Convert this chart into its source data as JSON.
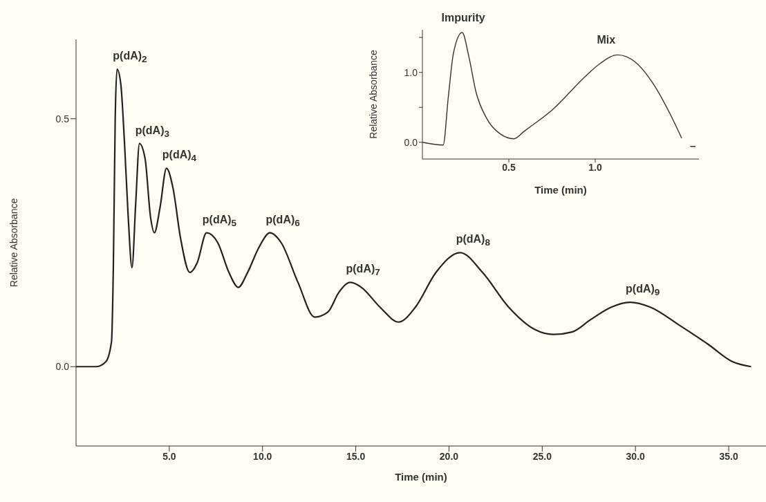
{
  "chart_data": [
    {
      "type": "line",
      "xlabel": "Time (min)",
      "ylabel": "Relative Absorbance",
      "xlim": [
        0,
        37
      ],
      "ylim": [
        -0.16,
        0.66
      ],
      "xticks": [
        {
          "value": 5,
          "label": "5.0"
        },
        {
          "value": 10,
          "label": "10.0"
        },
        {
          "value": 15,
          "label": "15.0"
        },
        {
          "value": 20,
          "label": "20.0"
        },
        {
          "value": 25,
          "label": "25.0"
        },
        {
          "value": 30,
          "label": "30.0"
        },
        {
          "value": 35,
          "label": "35.0"
        }
      ],
      "yticks": [
        {
          "value": 0,
          "label": "0.0"
        },
        0.5
      ],
      "series": [
        {
          "color": "#222222",
          "x": [
            0,
            1.1,
            1.6,
            1.9,
            2.0,
            2.1,
            2.2,
            2.4,
            2.6,
            2.8,
            3.0,
            3.2,
            3.4,
            3.7,
            4.0,
            4.2,
            4.5,
            4.85,
            5.2,
            5.6,
            6.1,
            6.5,
            7.0,
            7.6,
            8.2,
            8.7,
            9.2,
            9.8,
            10.4,
            11.0,
            11.9,
            12.8,
            13.5,
            14.1,
            14.7,
            15.3,
            16.3,
            17.3,
            18.2,
            19.3,
            20.6,
            21.8,
            23.2,
            24.6,
            25.6,
            26.6,
            27.6,
            28.7,
            29.7,
            30.8,
            32.3,
            33.9,
            35.2,
            36.2
          ],
          "values": [
            0,
            0,
            0.01,
            0.05,
            0.2,
            0.5,
            0.6,
            0.57,
            0.45,
            0.3,
            0.2,
            0.33,
            0.45,
            0.42,
            0.3,
            0.27,
            0.32,
            0.4,
            0.36,
            0.26,
            0.19,
            0.21,
            0.27,
            0.25,
            0.19,
            0.16,
            0.19,
            0.24,
            0.27,
            0.25,
            0.17,
            0.1,
            0.11,
            0.15,
            0.17,
            0.16,
            0.12,
            0.09,
            0.12,
            0.19,
            0.23,
            0.19,
            0.12,
            0.075,
            0.065,
            0.07,
            0.095,
            0.12,
            0.13,
            0.12,
            0.085,
            0.045,
            0.01,
            0.0
          ]
        }
      ],
      "annotations": [
        {
          "text": "p(dA)$_{2}$",
          "x": 2.2,
          "y": 0.6
        },
        {
          "text": "p(dA)$_{3}$",
          "x": 3.4,
          "y": 0.45
        },
        {
          "text": "p(dA)$_{4}$",
          "x": 4.85,
          "y": 0.4
        },
        {
          "text": "p(dA)$_{5}$",
          "x": 7.0,
          "y": 0.27
        },
        {
          "text": "p(dA)$_{6}$",
          "x": 10.4,
          "y": 0.27
        },
        {
          "text": "p(dA)$_{7}$",
          "x": 14.7,
          "y": 0.17
        },
        {
          "text": "p(dA)$_{8}$",
          "x": 20.6,
          "y": 0.23
        },
        {
          "text": "p(dA)$_{9}$",
          "x": 29.7,
          "y": 0.13
        }
      ]
    },
    {
      "type": "line",
      "xlabel": "Time (min)",
      "ylabel": "Relative Absorbance",
      "xlim": [
        0,
        1.6
      ],
      "ylim": [
        -0.24,
        1.61
      ],
      "xticks": [
        0.5,
        {
          "value": 1,
          "label": "1.0"
        }
      ],
      "yticks": [
        {
          "value": 0,
          "label": "0.0"
        },
        {
          "value": 0.5,
          "label": null
        },
        {
          "value": 1,
          "label": "1.0"
        },
        {
          "value": 1.5,
          "label": null
        }
      ],
      "series": [
        {
          "color": "#333333",
          "x": [
            0.0,
            0.12,
            0.15,
            0.18,
            0.23,
            0.27,
            0.31,
            0.37,
            0.45,
            0.53,
            0.59,
            0.75,
            0.95,
            1.03,
            1.13,
            1.23,
            1.34,
            1.43,
            1.5,
            1.52,
            1.55,
            1.58
          ],
          "values": [
            0,
            -0.04,
            0.65,
            1.28,
            1.57,
            1.21,
            0.72,
            0.35,
            0.12,
            0.05,
            0.16,
            0.46,
            0.96,
            1.13,
            1.25,
            1.15,
            0.82,
            0.42,
            0.06,
            null,
            -0.06,
            -0.06
          ]
        }
      ],
      "annotations": [
        {
          "text": "Impurity",
          "x": 0.23,
          "y": 1.57
        },
        {
          "text": "Mix",
          "x": 1.13,
          "y": 1.25
        }
      ]
    }
  ]
}
